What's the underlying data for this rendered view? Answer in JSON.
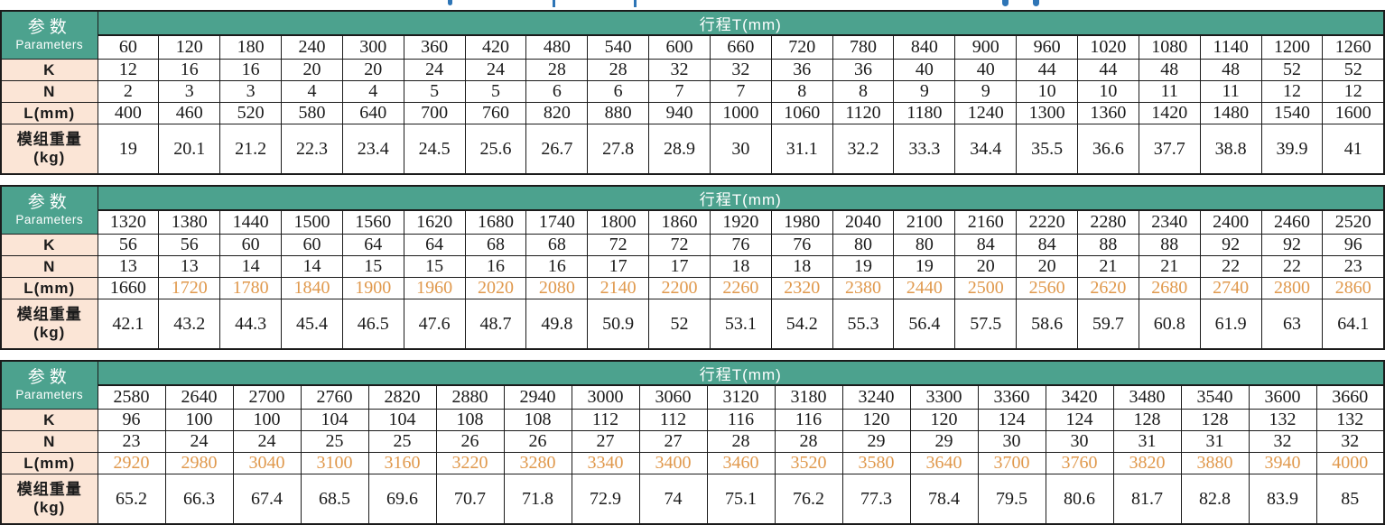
{
  "labels": {
    "param_cn": "参数",
    "param_en": "Parameters",
    "stroke_header": "行程T(mm)",
    "k": "K",
    "n": "N",
    "l": "L(mm)",
    "weight_line1": "模组重量",
    "weight_line2": "(kg)"
  },
  "colors": {
    "header_green": "#4ca28e",
    "label_peach": "#fbe5d6",
    "accent_orange": "#e0994d",
    "title_blue": "#2e75b6"
  },
  "tables": [
    {
      "strokes": [
        60,
        120,
        180,
        240,
        300,
        360,
        420,
        480,
        540,
        600,
        660,
        720,
        780,
        840,
        900,
        960,
        1020,
        1080,
        1140,
        1200,
        1260
      ],
      "k": [
        12,
        16,
        16,
        20,
        20,
        24,
        24,
        28,
        28,
        32,
        32,
        36,
        36,
        40,
        40,
        44,
        44,
        48,
        48,
        52,
        52
      ],
      "n": [
        2,
        3,
        3,
        4,
        4,
        5,
        5,
        6,
        6,
        7,
        7,
        8,
        8,
        9,
        9,
        10,
        10,
        11,
        11,
        12,
        12
      ],
      "l": [
        400,
        460,
        520,
        580,
        640,
        700,
        760,
        820,
        880,
        940,
        1000,
        1060,
        1120,
        1180,
        1240,
        1300,
        1360,
        1420,
        1480,
        1540,
        1600
      ],
      "l_orange_start": null,
      "weights": [
        19,
        20.1,
        21.2,
        22.3,
        23.4,
        24.5,
        25.6,
        26.7,
        27.8,
        28.9,
        30,
        31.1,
        32.2,
        33.3,
        34.4,
        35.5,
        36.6,
        37.7,
        38.8,
        39.9,
        41
      ]
    },
    {
      "strokes": [
        1320,
        1380,
        1440,
        1500,
        1560,
        1620,
        1680,
        1740,
        1800,
        1860,
        1920,
        1980,
        2040,
        2100,
        2160,
        2220,
        2280,
        2340,
        2400,
        2460,
        2520
      ],
      "k": [
        56,
        56,
        60,
        60,
        64,
        64,
        68,
        68,
        72,
        72,
        76,
        76,
        80,
        80,
        84,
        84,
        88,
        88,
        92,
        92,
        96
      ],
      "n": [
        13,
        13,
        14,
        14,
        15,
        15,
        16,
        16,
        17,
        17,
        18,
        18,
        19,
        19,
        20,
        20,
        21,
        21,
        22,
        22,
        23
      ],
      "l": [
        1660,
        1720,
        1780,
        1840,
        1900,
        1960,
        2020,
        2080,
        2140,
        2200,
        2260,
        2320,
        2380,
        2440,
        2500,
        2560,
        2620,
        2680,
        2740,
        2800,
        2860
      ],
      "l_orange_start": 1,
      "weights": [
        42.1,
        43.2,
        44.3,
        45.4,
        46.5,
        47.6,
        48.7,
        49.8,
        50.9,
        52,
        53.1,
        54.2,
        55.3,
        56.4,
        57.5,
        58.6,
        59.7,
        60.8,
        61.9,
        63,
        64.1
      ]
    },
    {
      "strokes": [
        2580,
        2640,
        2700,
        2760,
        2820,
        2880,
        2940,
        3000,
        3060,
        3120,
        3180,
        3240,
        3300,
        3360,
        3420,
        3480,
        3540,
        3600,
        3660
      ],
      "k": [
        96,
        100,
        100,
        104,
        104,
        108,
        108,
        112,
        112,
        116,
        116,
        120,
        120,
        124,
        124,
        128,
        128,
        132,
        132
      ],
      "n": [
        23,
        24,
        24,
        25,
        25,
        26,
        26,
        27,
        27,
        28,
        28,
        29,
        29,
        30,
        30,
        31,
        31,
        32,
        32
      ],
      "l": [
        2920,
        2980,
        3040,
        3100,
        3160,
        3220,
        3280,
        3340,
        3400,
        3460,
        3520,
        3580,
        3640,
        3700,
        3760,
        3820,
        3880,
        3940,
        4000
      ],
      "l_orange_start": 0,
      "weights": [
        65.2,
        66.3,
        67.4,
        68.5,
        69.6,
        70.7,
        71.8,
        72.9,
        74,
        75.1,
        76.2,
        77.3,
        78.4,
        79.5,
        80.6,
        81.7,
        82.8,
        83.9,
        85
      ]
    }
  ]
}
